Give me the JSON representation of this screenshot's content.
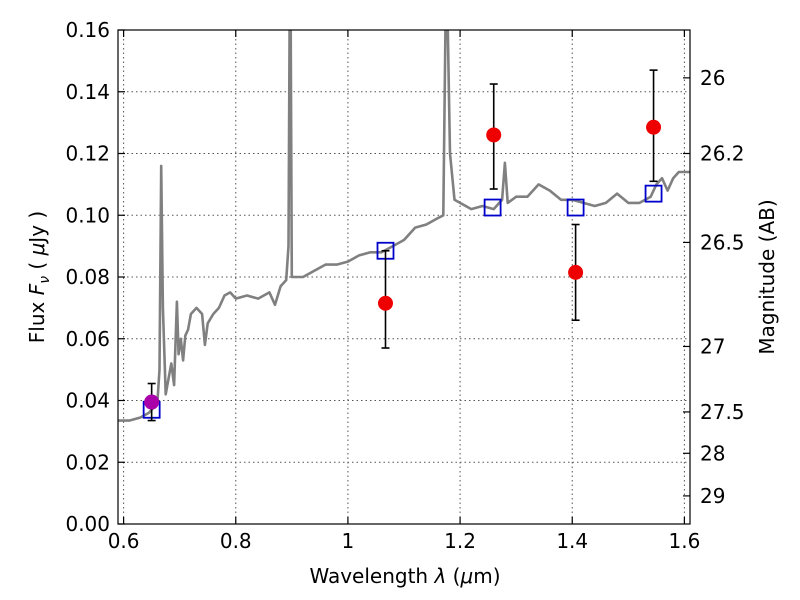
{
  "chart_data": {
    "type": "scatter",
    "xlabel": "Wavelength  λ (μm)",
    "ylabel": "Flux  F_ν  ( μJy )",
    "ylabel_parts": [
      "Flux  ",
      "F",
      "ν",
      "  ( ",
      "μ",
      "Jy )"
    ],
    "xlabel_parts": [
      "Wavelength  ",
      "λ",
      " (",
      "μ",
      "m)"
    ],
    "y2label": "Magnitude (AB)",
    "xlim": [
      0.59,
      1.61
    ],
    "ylim": [
      0.0,
      0.16
    ],
    "grid": true,
    "x_ticks": [
      {
        "value": 0.6,
        "label": "0.6"
      },
      {
        "value": 0.8,
        "label": "0.8"
      },
      {
        "value": 1.0,
        "label": "1"
      },
      {
        "value": 1.2,
        "label": "1.2"
      },
      {
        "value": 1.4,
        "label": "1.4"
      },
      {
        "value": 1.6,
        "label": "1.6"
      }
    ],
    "y_ticks": [
      {
        "value": 0.0,
        "label": "0.00"
      },
      {
        "value": 0.02,
        "label": "0.02"
      },
      {
        "value": 0.04,
        "label": "0.04"
      },
      {
        "value": 0.06,
        "label": "0.06"
      },
      {
        "value": 0.08,
        "label": "0.08"
      },
      {
        "value": 0.1,
        "label": "0.10"
      },
      {
        "value": 0.12,
        "label": "0.12"
      },
      {
        "value": 0.14,
        "label": "0.14"
      },
      {
        "value": 0.16,
        "label": "0.16"
      }
    ],
    "y2_ticks": [
      {
        "flux": 0.1445,
        "label": "26"
      },
      {
        "flux": 0.12,
        "label": "26.2"
      },
      {
        "flux": 0.0912,
        "label": "26.5"
      },
      {
        "flux": 0.0575,
        "label": "27"
      },
      {
        "flux": 0.0363,
        "label": "27.5"
      },
      {
        "flux": 0.0229,
        "label": "28"
      },
      {
        "flux": 0.0091,
        "label": "29"
      }
    ],
    "series": [
      {
        "kind": "line",
        "color": "#808080",
        "points": [
          [
            0.59,
            0.0335
          ],
          [
            0.61,
            0.0335
          ],
          [
            0.63,
            0.0345
          ],
          [
            0.645,
            0.036
          ],
          [
            0.66,
            0.039
          ],
          [
            0.664,
            0.05
          ],
          [
            0.667,
            0.116
          ],
          [
            0.67,
            0.07
          ],
          [
            0.675,
            0.042
          ],
          [
            0.68,
            0.047
          ],
          [
            0.685,
            0.052
          ],
          [
            0.69,
            0.045
          ],
          [
            0.695,
            0.072
          ],
          [
            0.698,
            0.055
          ],
          [
            0.702,
            0.06
          ],
          [
            0.706,
            0.053
          ],
          [
            0.71,
            0.061
          ],
          [
            0.715,
            0.063
          ],
          [
            0.72,
            0.068
          ],
          [
            0.73,
            0.07
          ],
          [
            0.74,
            0.068
          ],
          [
            0.745,
            0.058
          ],
          [
            0.75,
            0.065
          ],
          [
            0.76,
            0.068
          ],
          [
            0.77,
            0.07
          ],
          [
            0.78,
            0.074
          ],
          [
            0.79,
            0.075
          ],
          [
            0.8,
            0.073
          ],
          [
            0.82,
            0.074
          ],
          [
            0.84,
            0.073
          ],
          [
            0.86,
            0.075
          ],
          [
            0.87,
            0.071
          ],
          [
            0.88,
            0.077
          ],
          [
            0.89,
            0.079
          ],
          [
            0.894,
            0.09
          ],
          [
            0.896,
            0.162
          ],
          [
            0.898,
            0.162
          ],
          [
            0.9,
            0.08
          ],
          [
            0.92,
            0.08
          ],
          [
            0.94,
            0.082
          ],
          [
            0.96,
            0.084
          ],
          [
            0.98,
            0.084
          ],
          [
            1.0,
            0.085
          ],
          [
            1.02,
            0.087
          ],
          [
            1.04,
            0.088
          ],
          [
            1.06,
            0.088
          ],
          [
            1.08,
            0.09
          ],
          [
            1.1,
            0.092
          ],
          [
            1.12,
            0.096
          ],
          [
            1.14,
            0.097
          ],
          [
            1.16,
            0.099
          ],
          [
            1.17,
            0.1
          ],
          [
            1.174,
            0.162
          ],
          [
            1.178,
            0.162
          ],
          [
            1.182,
            0.12
          ],
          [
            1.19,
            0.105
          ],
          [
            1.2,
            0.104
          ],
          [
            1.22,
            0.102
          ],
          [
            1.24,
            0.103
          ],
          [
            1.26,
            0.102
          ],
          [
            1.275,
            0.105
          ],
          [
            1.28,
            0.117
          ],
          [
            1.285,
            0.104
          ],
          [
            1.3,
            0.106
          ],
          [
            1.32,
            0.106
          ],
          [
            1.34,
            0.11
          ],
          [
            1.36,
            0.108
          ],
          [
            1.38,
            0.105
          ],
          [
            1.4,
            0.105
          ],
          [
            1.42,
            0.104
          ],
          [
            1.44,
            0.103
          ],
          [
            1.46,
            0.104
          ],
          [
            1.48,
            0.107
          ],
          [
            1.5,
            0.104
          ],
          [
            1.52,
            0.104
          ],
          [
            1.54,
            0.106
          ],
          [
            1.55,
            0.11
          ],
          [
            1.56,
            0.112
          ],
          [
            1.57,
            0.108
          ],
          [
            1.58,
            0.112
          ],
          [
            1.59,
            0.114
          ],
          [
            1.6,
            0.114
          ],
          [
            1.61,
            0.114
          ]
        ]
      },
      {
        "kind": "squares",
        "color": "#0000cc",
        "points": [
          [
            0.65,
            0.037
          ],
          [
            1.067,
            0.0885
          ],
          [
            1.258,
            0.1025
          ],
          [
            1.406,
            0.1025
          ],
          [
            1.545,
            0.107
          ]
        ]
      },
      {
        "kind": "points_with_errors",
        "color": "#ee0000",
        "points": [
          {
            "x": 1.067,
            "y": 0.0715,
            "lo": 0.057,
            "hi": 0.0885
          },
          {
            "x": 1.26,
            "y": 0.126,
            "lo": 0.1085,
            "hi": 0.1425
          },
          {
            "x": 1.406,
            "y": 0.0815,
            "lo": 0.066,
            "hi": 0.097
          },
          {
            "x": 1.545,
            "y": 0.1285,
            "lo": 0.111,
            "hi": 0.147
          }
        ]
      },
      {
        "kind": "points_with_errors",
        "color": "#aa00aa",
        "points": [
          {
            "x": 0.65,
            "y": 0.0395,
            "lo": 0.0335,
            "hi": 0.0455
          }
        ]
      }
    ]
  }
}
